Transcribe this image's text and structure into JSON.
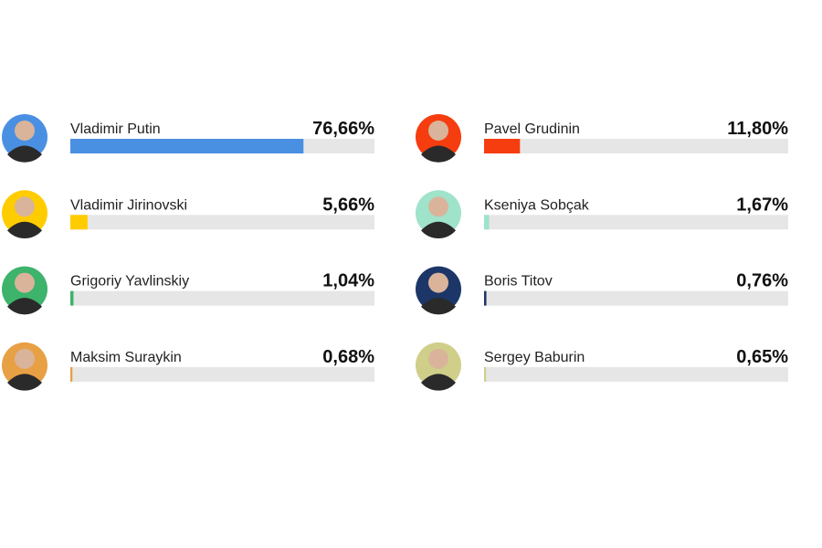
{
  "chart_data": {
    "type": "bar",
    "orientation": "horizontal",
    "categories": [
      "Vladimir Putin",
      "Pavel Grudinin",
      "Vladimir Jirinovski",
      "Kseniya Sobçak",
      "Grigoriy Yavlinskiy",
      "Boris Titov",
      "Maksim Suraykin",
      "Sergey Baburin"
    ],
    "values": [
      76.66,
      11.8,
      5.66,
      1.67,
      1.04,
      0.76,
      0.68,
      0.65
    ],
    "value_labels": [
      "76,66%",
      "11,80%",
      "5,66%",
      "1,67%",
      "1,04%",
      "0,76%",
      "0,68%",
      "0,65%"
    ],
    "colors": [
      "#4a90e2",
      "#f53d10",
      "#ffcc00",
      "#9fe3cb",
      "#3db36b",
      "#1c3668",
      "#e8a045",
      "#cfcf8a"
    ],
    "xlim": [
      0,
      100
    ]
  }
}
